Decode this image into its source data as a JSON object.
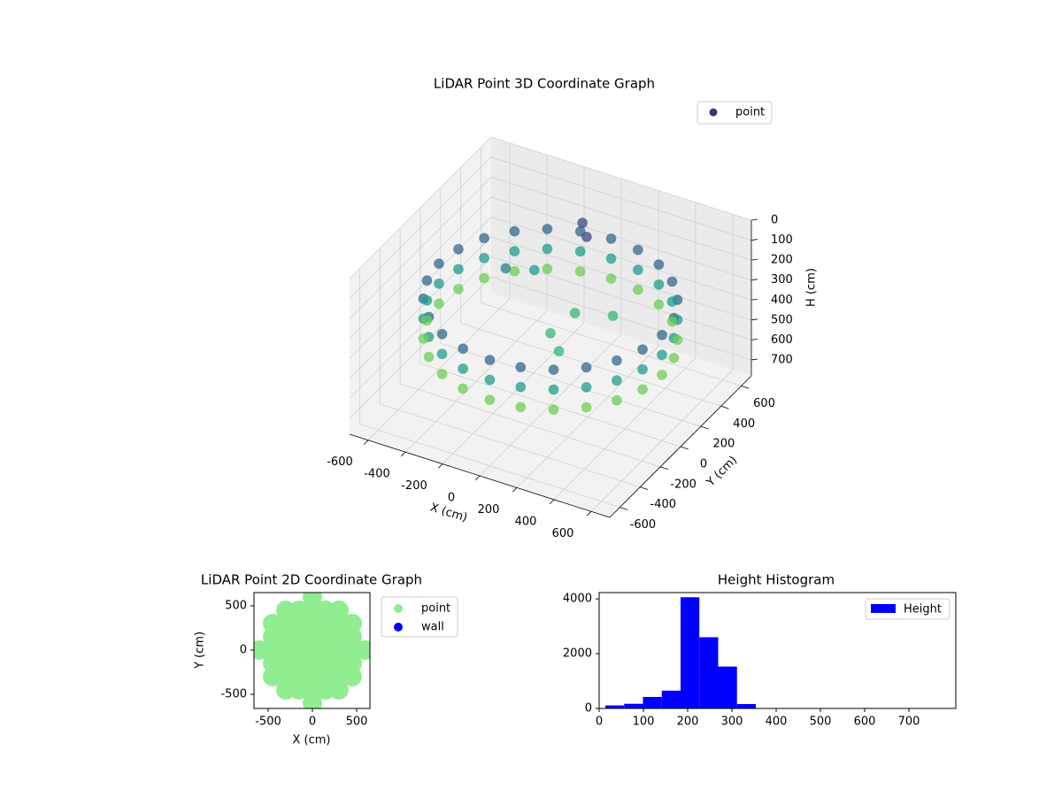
{
  "chart_data": [
    {
      "type": "scatter3d",
      "title": "LiDAR Point 3D Coordinate Graph",
      "xlabel": "X (cm)",
      "ylabel": "Y (cm)",
      "zlabel": "H (cm)",
      "series": [
        {
          "name": "point",
          "color": "#472d7b",
          "colormap": "viridis",
          "x": [
            600,
            580,
            520,
            424,
            300,
            155,
            0,
            -155,
            -300,
            -424,
            -520,
            -580,
            -600,
            -580,
            -520,
            -424,
            -300,
            -155,
            0,
            155,
            300,
            424,
            520,
            580,
            600,
            580,
            520,
            424,
            300,
            155,
            0,
            -155,
            -300,
            -424,
            -520,
            -580,
            -600,
            -580,
            -520,
            -424,
            -300,
            -155,
            0,
            155,
            300,
            424,
            520,
            580,
            600,
            580,
            520,
            424,
            300,
            155,
            0,
            -155,
            -300,
            -424,
            -520,
            -580,
            -600,
            -580,
            -520,
            -424,
            -300,
            -155,
            0,
            155,
            300,
            424,
            520,
            580,
            -100,
            -50,
            0,
            100,
            200,
            -250,
            -350,
            50
          ],
          "y": [
            0,
            155,
            300,
            424,
            520,
            580,
            600,
            580,
            520,
            424,
            300,
            155,
            0,
            -155,
            -300,
            -424,
            -520,
            -580,
            -600,
            -580,
            -520,
            -424,
            -300,
            -155,
            0,
            155,
            300,
            424,
            520,
            580,
            600,
            580,
            520,
            424,
            300,
            155,
            0,
            -155,
            -300,
            -424,
            -520,
            -580,
            -600,
            -580,
            -520,
            -424,
            -300,
            -155,
            0,
            155,
            300,
            424,
            520,
            580,
            600,
            580,
            520,
            424,
            300,
            155,
            0,
            -155,
            -300,
            -424,
            -520,
            -580,
            -600,
            -580,
            -520,
            -424,
            -300,
            -155,
            500,
            450,
            0,
            -100,
            250,
            300,
            200,
            150
          ],
          "z": [
            250,
            250,
            250,
            250,
            250,
            250,
            250,
            250,
            250,
            250,
            250,
            250,
            250,
            250,
            250,
            250,
            250,
            250,
            250,
            250,
            250,
            250,
            250,
            250,
            350,
            350,
            350,
            350,
            350,
            350,
            350,
            350,
            350,
            350,
            350,
            350,
            350,
            350,
            350,
            350,
            350,
            350,
            350,
            350,
            350,
            350,
            350,
            350,
            450,
            450,
            450,
            450,
            450,
            450,
            450,
            450,
            450,
            450,
            450,
            450,
            450,
            450,
            450,
            450,
            450,
            450,
            450,
            450,
            450,
            450,
            450,
            450,
            150,
            180,
            420,
            430,
            400,
            330,
            300,
            380
          ]
        }
      ],
      "xlim": [
        -700,
        700
      ],
      "ylim": [
        -700,
        700
      ],
      "zlim": [
        780,
        0
      ],
      "xticks": [
        -600,
        -400,
        -200,
        0,
        200,
        400,
        600
      ],
      "yticks": [
        -600,
        -400,
        -200,
        0,
        200,
        400,
        600
      ],
      "zticks": [
        0,
        100,
        200,
        300,
        400,
        500,
        600,
        700
      ],
      "grid": true,
      "legend": "upper right"
    },
    {
      "type": "scatter",
      "title": "LiDAR Point 2D Coordinate Graph",
      "xlabel": "X (cm)",
      "ylabel": "Y (cm)",
      "series": [
        {
          "name": "point",
          "color": "#90ee90",
          "x": [
            0,
            -300,
            -150,
            0,
            150,
            300,
            -450,
            -300,
            -150,
            0,
            150,
            300,
            450,
            -450,
            -300,
            -150,
            0,
            150,
            300,
            450,
            -600,
            -450,
            -300,
            -150,
            0,
            150,
            300,
            450,
            600,
            -450,
            -300,
            -150,
            0,
            150,
            300,
            450,
            -450,
            -300,
            -150,
            0,
            150,
            300,
            450,
            -300,
            -150,
            0,
            150,
            300,
            0
          ],
          "y": [
            600,
            450,
            450,
            450,
            450,
            450,
            300,
            300,
            300,
            300,
            300,
            300,
            300,
            150,
            150,
            150,
            150,
            150,
            150,
            150,
            0,
            0,
            0,
            0,
            0,
            0,
            0,
            0,
            0,
            -150,
            -150,
            -150,
            -150,
            -150,
            -150,
            -150,
            -300,
            -300,
            -300,
            -300,
            -300,
            -300,
            -300,
            -450,
            -450,
            -450,
            -450,
            -450,
            -600
          ]
        },
        {
          "name": "wall",
          "color": "#0000ff",
          "x": [],
          "y": []
        }
      ],
      "xlim": [
        -660,
        650
      ],
      "ylim": [
        -660,
        650
      ],
      "xticks": [
        -500,
        0,
        500
      ],
      "yticks": [
        -500,
        0,
        500
      ],
      "legend": "outside right"
    },
    {
      "type": "histogram",
      "title": "Height Histogram",
      "series": [
        {
          "name": "Height",
          "color": "#0000ff",
          "bins": [
            14,
            56.5,
            99,
            141.5,
            184,
            226.5,
            269,
            311.5,
            354,
            396.5,
            439,
            481.5,
            524,
            566.5,
            609,
            651.5,
            694,
            736.5,
            779
          ],
          "values": [
            110,
            170,
            420,
            650,
            4060,
            2600,
            1530,
            160,
            10,
            5,
            3,
            3,
            2,
            2,
            2,
            2,
            1,
            1
          ]
        }
      ],
      "xlim": [
        0,
        806
      ],
      "ylim": [
        0,
        4230
      ],
      "xticks": [
        0,
        100,
        200,
        300,
        400,
        500,
        600,
        700
      ],
      "yticks": [
        0,
        2000,
        4000
      ],
      "legend": "upper right"
    }
  ]
}
